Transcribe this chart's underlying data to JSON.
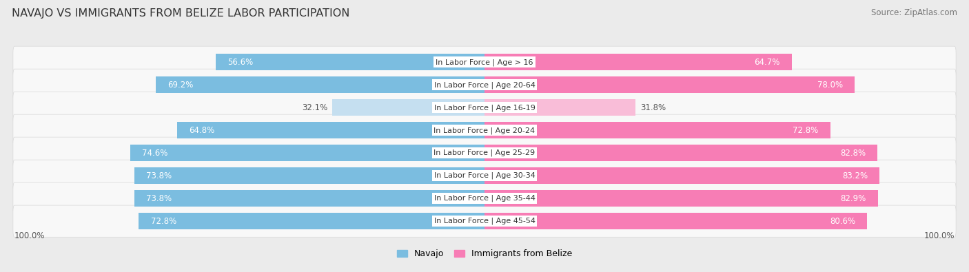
{
  "title": "NAVAJO VS IMMIGRANTS FROM BELIZE LABOR PARTICIPATION",
  "source": "Source: ZipAtlas.com",
  "categories": [
    "In Labor Force | Age > 16",
    "In Labor Force | Age 20-64",
    "In Labor Force | Age 16-19",
    "In Labor Force | Age 20-24",
    "In Labor Force | Age 25-29",
    "In Labor Force | Age 30-34",
    "In Labor Force | Age 35-44",
    "In Labor Force | Age 45-54"
  ],
  "navajo_values": [
    56.6,
    69.2,
    32.1,
    64.8,
    74.6,
    73.8,
    73.8,
    72.8
  ],
  "belize_values": [
    64.7,
    78.0,
    31.8,
    72.8,
    82.8,
    83.2,
    82.9,
    80.6
  ],
  "navajo_color": "#7bbde0",
  "navajo_color_light": "#c5dff0",
  "belize_color": "#f77db5",
  "belize_color_light": "#f9bdd8",
  "background_color": "#ebebeb",
  "row_background": "#f8f8f8",
  "row_edge_color": "#d8d8d8",
  "legend_labels": [
    "Navajo",
    "Immigrants from Belize"
  ],
  "title_fontsize": 11.5,
  "source_fontsize": 8.5,
  "bar_label_fontsize": 8.5,
  "category_fontsize": 8,
  "value_label_color_inside": "white",
  "value_label_color_outside": "#555555"
}
